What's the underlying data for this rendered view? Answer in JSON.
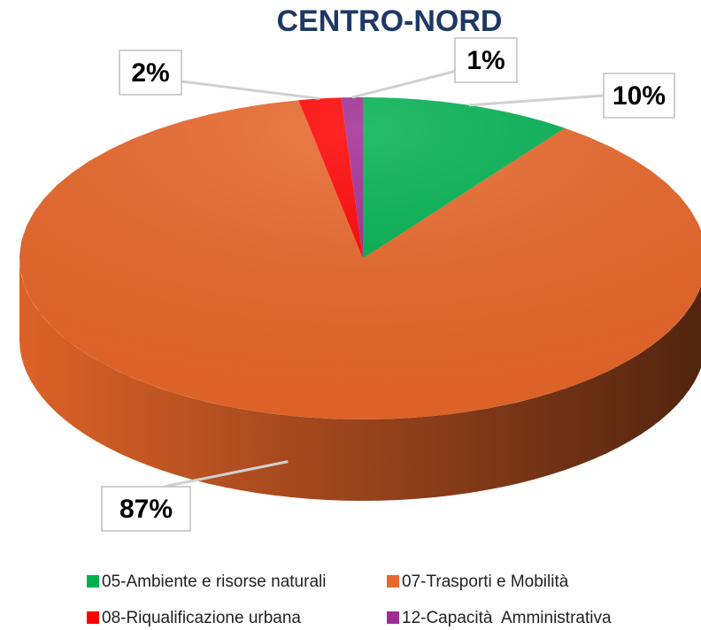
{
  "chart_data": {
    "type": "pie",
    "title": "CENTRO-NORD",
    "categories": [
      "05-Ambiente e risorse naturali",
      "07-Trasporti e Mobilità",
      "08-Riqualificazione urbana",
      "12-Capacità  Amministrativa"
    ],
    "values": [
      10,
      87,
      2,
      1
    ],
    "value_labels": [
      "10%",
      "87%",
      "2%",
      "1%"
    ],
    "colors": [
      "#00b050",
      "#e8672a",
      "#ff0000",
      "#a02b93"
    ]
  }
}
